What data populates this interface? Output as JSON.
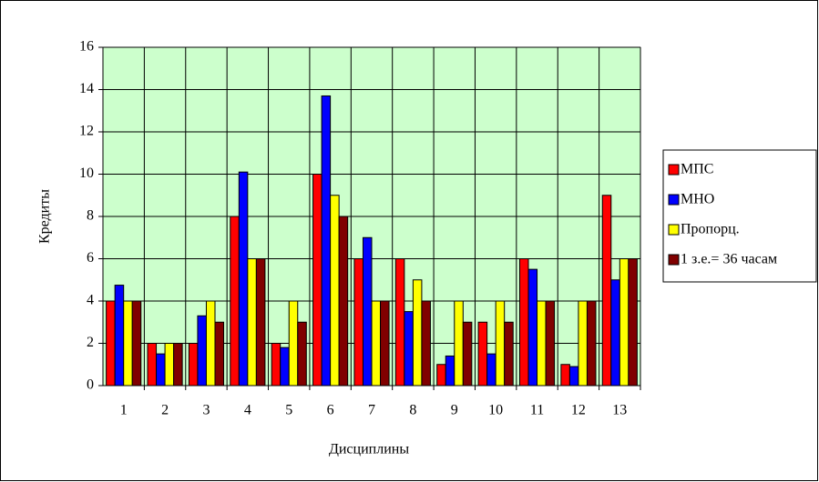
{
  "chart_data": {
    "type": "bar",
    "x_label": "Дисциплины",
    "y_label": "Кредиты",
    "categories": [
      "1",
      "2",
      "3",
      "4",
      "5",
      "6",
      "7",
      "8",
      "9",
      "10",
      "11",
      "12",
      "13"
    ],
    "series": [
      {
        "name": "МПС",
        "color": "#ff0000",
        "values": [
          4,
          2,
          2,
          8,
          2,
          10,
          6,
          6,
          1,
          3,
          6,
          1,
          9
        ]
      },
      {
        "name": "МНО",
        "color": "#0000ff",
        "values": [
          4.75,
          1.5,
          3.3,
          10.1,
          1.8,
          13.7,
          7,
          3.5,
          1.4,
          1.5,
          5.5,
          0.9,
          5
        ]
      },
      {
        "name": "Пропорц.",
        "color": "#ffff00",
        "values": [
          4,
          2,
          4,
          6,
          4,
          9,
          4,
          5,
          4,
          4,
          4,
          4,
          6
        ]
      },
      {
        "name": "1 з.е.= 36 часам",
        "color": "#800000",
        "values": [
          4,
          2,
          3,
          6,
          3,
          8,
          4,
          4,
          3,
          3,
          4,
          4,
          6
        ]
      }
    ],
    "ylim": [
      0,
      16
    ],
    "yticks": [
      0,
      2,
      4,
      6,
      8,
      10,
      12,
      14,
      16
    ],
    "grid": true,
    "plot_background": "#ccffcc",
    "legend": "right"
  }
}
